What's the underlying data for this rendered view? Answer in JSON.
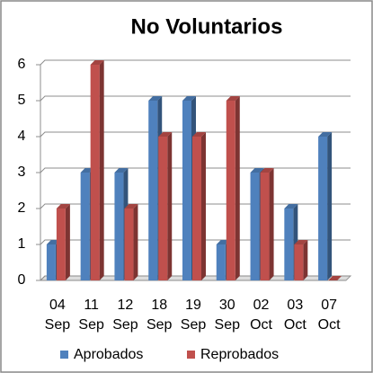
{
  "chart_data": {
    "type": "bar",
    "title": "No Voluntarios",
    "categories": [
      "04 Sep",
      "11 Sep",
      "12 Sep",
      "18 Sep",
      "19 Sep",
      "30 Sep",
      "02 Oct",
      "03 Oct",
      "07 Oct"
    ],
    "series": [
      {
        "name": "Aprobados",
        "color": "#4f81bd",
        "values": [
          1,
          3,
          3,
          5,
          5,
          1,
          3,
          2,
          4
        ]
      },
      {
        "name": "Reprobados",
        "color": "#c0504d",
        "values": [
          2,
          6,
          2,
          4,
          4,
          5,
          3,
          1,
          0
        ]
      }
    ],
    "ylim": [
      0,
      6
    ],
    "yticks": [
      0,
      1,
      2,
      3,
      4,
      5,
      6
    ],
    "grid": true,
    "legend": "bottom"
  }
}
